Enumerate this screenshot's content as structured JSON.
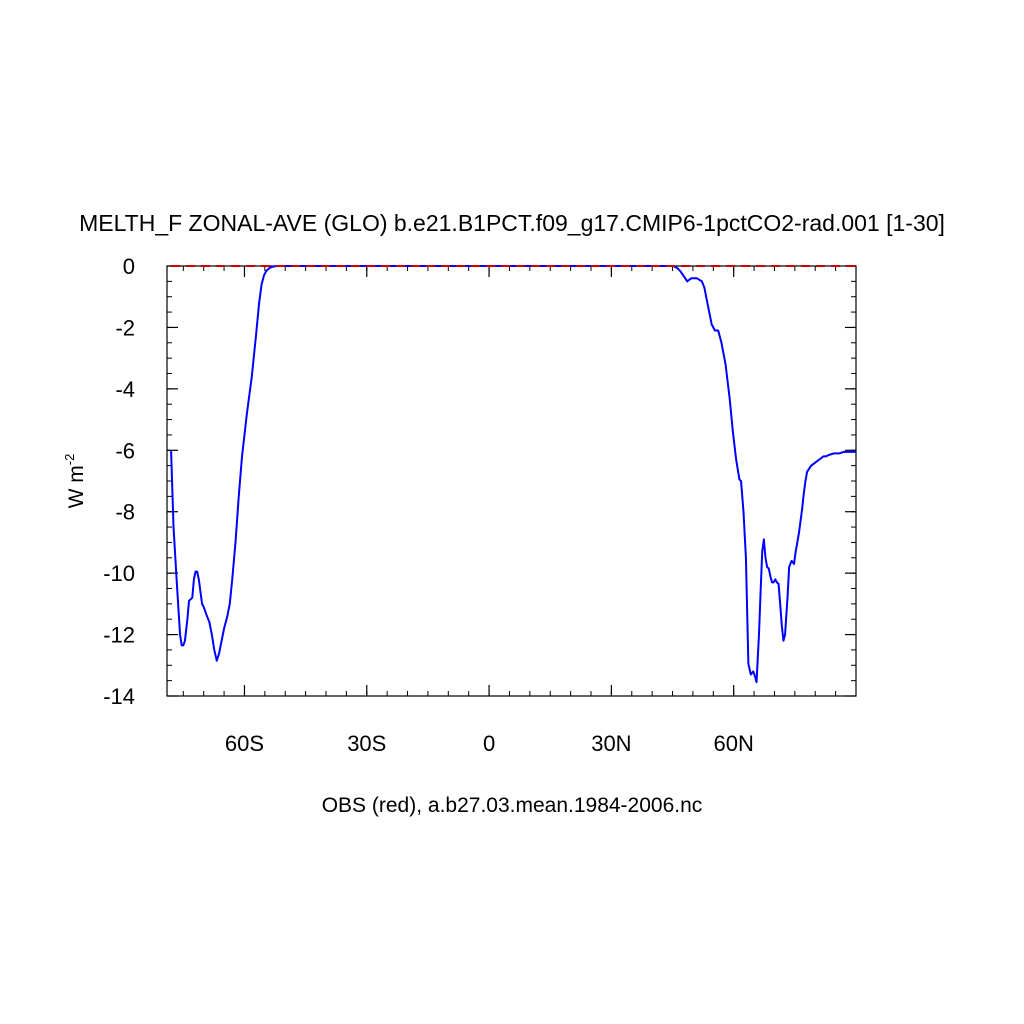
{
  "chart_data": {
    "type": "line",
    "title": "MELTH_F ZONAL-AVE (GLO) b.e21.B1PCT.f09_g17.CMIP6-1pctCO2-rad.001 [1-30]",
    "ylabel_base": "W m",
    "ylabel_exp": "-2",
    "footer": "OBS (red), a.b27.03.mean.1984-2006.nc",
    "xlim": [
      -79,
      90
    ],
    "ylim": [
      -14,
      0
    ],
    "x_ticks": [
      {
        "value": -60,
        "label": "60S"
      },
      {
        "value": -30,
        "label": "30S"
      },
      {
        "value": 0,
        "label": "0"
      },
      {
        "value": 30,
        "label": "30N"
      },
      {
        "value": 60,
        "label": "60N"
      }
    ],
    "y_ticks": [
      {
        "value": 0,
        "label": "0"
      },
      {
        "value": -2,
        "label": "-2"
      },
      {
        "value": -4,
        "label": "-4"
      },
      {
        "value": -6,
        "label": "-6"
      },
      {
        "value": -8,
        "label": "-8"
      },
      {
        "value": -10,
        "label": "-10"
      },
      {
        "value": -12,
        "label": "-12"
      },
      {
        "value": -14,
        "label": "-14"
      }
    ],
    "series": [
      {
        "color": "#0000ff",
        "style": "solid",
        "x": [
          -78,
          -77.4,
          -76.6,
          -75.8,
          -75.4,
          -75.0,
          -74.6,
          -74.0,
          -73.6,
          -72.8,
          -72.4,
          -72.0,
          -71.6,
          -71.2,
          -70.4,
          -70.0,
          -69.2,
          -68.6,
          -68.0,
          -67.4,
          -66.8,
          -66.2,
          -65.6,
          -65.0,
          -64.2,
          -63.6,
          -63.0,
          -62.2,
          -61.4,
          -60.6,
          -59.4,
          -58.2,
          -57.2,
          -56.4,
          -55.8,
          -55.2,
          -54.6,
          -53.8,
          -53.0,
          -52.0,
          -51.0,
          -50.0,
          -49.0,
          -48.0,
          40.0,
          45.0,
          46.0,
          46.8,
          47.6,
          48.6,
          49.6,
          51.0,
          52.2,
          52.8,
          53.4,
          54.0,
          54.6,
          55.4,
          56.2,
          57.0,
          58.0,
          59.0,
          59.8,
          60.6,
          61.4,
          61.8,
          62.4,
          63.0,
          63.6,
          64.2,
          64.8,
          65.2,
          65.6,
          66.2,
          66.6,
          67.0,
          67.4,
          67.8,
          68.2,
          68.6,
          69.0,
          69.4,
          69.8,
          70.2,
          70.6,
          71.0,
          71.4,
          71.8,
          72.2,
          72.6,
          73.2,
          73.6,
          74.2,
          74.8,
          75.2,
          75.6,
          76.0,
          76.4,
          76.8,
          77.2,
          77.6,
          78.0,
          79.0,
          80.0,
          81.0,
          82.0,
          82.6,
          83.4,
          84.6,
          86.0,
          87.0,
          88.0,
          89.0,
          90.0
        ],
        "values": [
          -6.0,
          -8.5,
          -10.3,
          -12.0,
          -12.35,
          -12.35,
          -12.2,
          -11.5,
          -10.9,
          -10.8,
          -10.2,
          -9.95,
          -9.95,
          -10.2,
          -11.0,
          -11.1,
          -11.4,
          -11.6,
          -12.0,
          -12.5,
          -12.85,
          -12.6,
          -12.2,
          -11.8,
          -11.4,
          -11.0,
          -10.2,
          -9.0,
          -7.5,
          -6.2,
          -4.8,
          -3.6,
          -2.3,
          -1.2,
          -0.6,
          -0.3,
          -0.15,
          -0.06,
          -0.02,
          0.0,
          0.0,
          0.0,
          0.0,
          0.0,
          0.0,
          0.0,
          -0.05,
          -0.15,
          -0.3,
          -0.5,
          -0.4,
          -0.4,
          -0.5,
          -0.7,
          -1.1,
          -1.5,
          -1.9,
          -2.1,
          -2.1,
          -2.5,
          -3.2,
          -4.3,
          -5.4,
          -6.3,
          -6.95,
          -7.0,
          -8.0,
          -9.5,
          -12.95,
          -13.3,
          -13.2,
          -13.35,
          -13.55,
          -12.0,
          -10.6,
          -9.3,
          -8.9,
          -9.5,
          -9.8,
          -9.85,
          -10.1,
          -10.3,
          -10.3,
          -10.2,
          -10.3,
          -10.35,
          -11.0,
          -11.7,
          -12.2,
          -12.0,
          -10.8,
          -9.8,
          -9.6,
          -9.7,
          -9.3,
          -9.0,
          -8.7,
          -8.3,
          -7.9,
          -7.4,
          -7.0,
          -6.7,
          -6.5,
          -6.4,
          -6.3,
          -6.2,
          -6.2,
          -6.15,
          -6.1,
          -6.1,
          -6.05,
          -6.05,
          -6.05,
          -6.05
        ]
      },
      {
        "color": "#cc0000",
        "style": "dashed",
        "x": [
          -78,
          90
        ],
        "values": [
          0,
          0
        ]
      }
    ]
  }
}
